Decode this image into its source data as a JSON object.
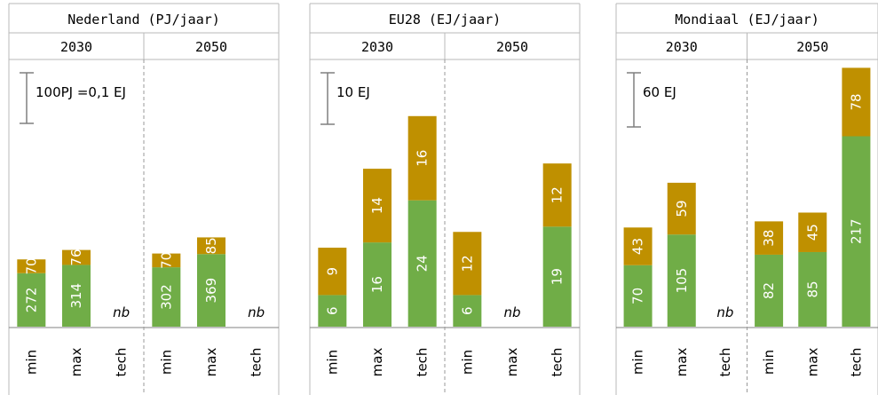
{
  "colors": {
    "green": "#70ad47",
    "gold": "#bf9000",
    "border": "#b8b8b8",
    "scalebar": "#7f7f7f"
  },
  "chart_data": [
    {
      "type": "bar",
      "title": "Nederland (PJ/jaar)",
      "scale_label": "100PJ =0,1 EJ",
      "groups": [
        {
          "year": "2030",
          "bars": [
            {
              "category": "min",
              "green": 272,
              "gold": 70
            },
            {
              "category": "max",
              "green": 314,
              "gold": 76
            },
            {
              "category": "tech",
              "nb": "nb"
            }
          ]
        },
        {
          "year": "2050",
          "bars": [
            {
              "category": "min",
              "green": 302,
              "gold": 70
            },
            {
              "category": "max",
              "green": 369,
              "gold": 85
            },
            {
              "category": "tech",
              "nb": "nb"
            }
          ]
        }
      ]
    },
    {
      "type": "bar",
      "title": "EU28 (EJ/jaar)",
      "scale_label": "10 EJ",
      "groups": [
        {
          "year": "2030",
          "bars": [
            {
              "category": "min",
              "green": 6,
              "gold": 9
            },
            {
              "category": "max",
              "green": 16,
              "gold": 14
            },
            {
              "category": "tech",
              "green": 24,
              "gold": 16
            }
          ]
        },
        {
          "year": "2050",
          "bars": [
            {
              "category": "min",
              "green": 6,
              "gold": 12
            },
            {
              "category": "max",
              "nb": "nb"
            },
            {
              "category": "tech",
              "green": 19,
              "gold": 12
            }
          ]
        }
      ]
    },
    {
      "type": "bar",
      "title": "Mondiaal (EJ/jaar)",
      "scale_label": "60 EJ",
      "groups": [
        {
          "year": "2030",
          "bars": [
            {
              "category": "min",
              "green": 70,
              "gold": 43
            },
            {
              "category": "max",
              "green": 105,
              "gold": 59
            },
            {
              "category": "tech",
              "nb": "nb"
            }
          ]
        },
        {
          "year": "2050",
          "bars": [
            {
              "category": "min",
              "green": 82,
              "gold": 38
            },
            {
              "category": "max",
              "green": 85,
              "gold": 45
            },
            {
              "category": "tech",
              "green": 217,
              "gold": 78
            }
          ]
        }
      ]
    }
  ]
}
